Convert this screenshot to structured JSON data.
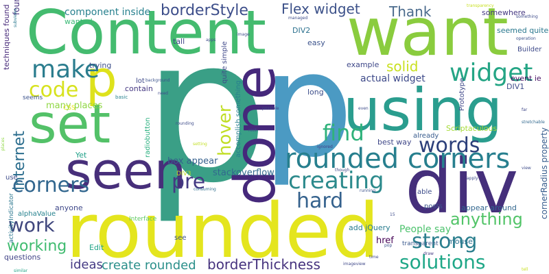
{
  "words": [
    {
      "text": "p",
      "color": "#3a9f86"
    },
    {
      "text": "p",
      "color": "#4b9ac3"
    },
    {
      "text": "Content",
      "color": "#44bb6f"
    },
    {
      "text": "want",
      "color": "#8acc3e"
    },
    {
      "text": "rounded",
      "color": "#e4e51e"
    },
    {
      "text": "using",
      "color": "#2a9d8e"
    },
    {
      "text": "div",
      "color": "#452f7b"
    },
    {
      "text": "set",
      "color": "#53c168"
    },
    {
      "text": "seen",
      "color": "#472f7a"
    },
    {
      "text": "done",
      "color": "#45287b"
    },
    {
      "text": "p",
      "color": "#dee21c"
    },
    {
      "text": "rounded corners",
      "color": "#277f8e"
    },
    {
      "text": "widget",
      "color": "#24a585"
    },
    {
      "text": "make",
      "color": "#2b7d8e"
    },
    {
      "text": "code",
      "color": "#d7e21e"
    },
    {
      "text": "find",
      "color": "#2fb27b"
    },
    {
      "text": "words",
      "color": "#2c3f7a"
    },
    {
      "text": "creating",
      "color": "#2c8a8c"
    },
    {
      "text": "hover",
      "color": "#c1de26"
    },
    {
      "text": "corners",
      "color": "#31668e"
    },
    {
      "text": "pre",
      "color": "#443a83"
    },
    {
      "text": "hard",
      "color": "#35628d"
    },
    {
      "text": "work",
      "color": "#3f467d"
    },
    {
      "text": "strong",
      "color": "#2b7f8e"
    },
    {
      "text": "solutions",
      "color": "#1ea787"
    },
    {
      "text": "internet",
      "color": "#2c6e8e"
    },
    {
      "text": "working",
      "color": "#3fbb6f"
    },
    {
      "text": "anything",
      "color": "#52c468"
    },
    {
      "text": "borderStyle",
      "color": "#3d4e8a"
    },
    {
      "text": "Flex widget",
      "color": "#3c5189"
    },
    {
      "text": "Thank",
      "color": "#4a6a8c"
    },
    {
      "text": "component inside",
      "color": "#27808e"
    },
    {
      "text": "solid",
      "color": "#c9e020"
    },
    {
      "text": "create rounded",
      "color": "#2a8f8a"
    },
    {
      "text": "borderThickness",
      "color": "#46337e"
    },
    {
      "text": "ideas",
      "color": "#443983"
    },
    {
      "text": "many places",
      "color": "#8fd744"
    },
    {
      "text": "actual widget",
      "color": "#3e4a89"
    },
    {
      "text": "box appear",
      "color": "#35608d"
    },
    {
      "text": "People say",
      "color": "#4cc26c"
    },
    {
      "text": "cornerRadius property",
      "color": "#365c8d"
    },
    {
      "text": "stackoverflow",
      "color": "#31688e"
    },
    {
      "text": "wanted",
      "color": "#3aba76"
    },
    {
      "text": "found",
      "color": "#46327e"
    },
    {
      "text": "techniques found",
      "color": "#472a7a"
    },
    {
      "text": "DIV2",
      "color": "#2c718e"
    },
    {
      "text": "easy",
      "color": "#3b528b"
    },
    {
      "text": "tall",
      "color": "#404588"
    },
    {
      "text": "trying",
      "color": "#3c4f8a"
    },
    {
      "text": "example",
      "color": "#3f4889"
    },
    {
      "text": "DIV1",
      "color": "#3e4c8a"
    },
    {
      "text": "event ie",
      "color": "#471063"
    },
    {
      "text": "somewhere",
      "color": "#453781"
    },
    {
      "text": "seemed quite",
      "color": "#2a788e"
    },
    {
      "text": "Builder",
      "color": "#3e4a89"
    },
    {
      "text": "contain",
      "color": "#453882"
    },
    {
      "text": "lot",
      "color": "#3f4889"
    },
    {
      "text": "long",
      "color": "#3d4e8a"
    },
    {
      "text": "Prototype",
      "color": "#3f4889"
    },
    {
      "text": "Scriptaculous",
      "color": "#a5db36"
    },
    {
      "text": "already",
      "color": "#375b8d"
    },
    {
      "text": "best way",
      "color": "#3f4788"
    },
    {
      "text": "appear around",
      "color": "#31668e"
    },
    {
      "text": "posts",
      "color": "#3a538b"
    },
    {
      "text": "able",
      "color": "#3d4d8a"
    },
    {
      "text": "href",
      "color": "#440154"
    },
    {
      "text": "mouse",
      "color": "#2d708e"
    },
    {
      "text": "add jQuery",
      "color": "#287c8e"
    },
    {
      "text": "alphaValue",
      "color": "#26828e"
    },
    {
      "text": "anyone",
      "color": "#3f4889"
    },
    {
      "text": "Yet",
      "color": "#1fa088"
    },
    {
      "text": "DIV3",
      "color": "#bddf26"
    },
    {
      "text": "use",
      "color": "#3e4c8a"
    },
    {
      "text": "Edit",
      "color": "#20a386"
    },
    {
      "text": "see",
      "color": "#3b528b"
    },
    {
      "text": "questions",
      "color": "#414487"
    },
    {
      "text": "transparent",
      "color": "#38588c"
    },
    {
      "text": "accomplish something",
      "color": "#277e8e"
    },
    {
      "text": "quite simple",
      "color": "#3f4889"
    },
    {
      "text": "radiobutton",
      "color": "#2ab07f"
    },
    {
      "text": "activityIndicator",
      "color": "#2a768e"
    },
    {
      "text": "Interface",
      "color": "#5ec962"
    },
    {
      "text": "CSS",
      "color": "#e5e419"
    },
    {
      "text": "seems",
      "color": "#3b528b"
    },
    {
      "text": "contain",
      "color": "#453882"
    },
    {
      "text": "basic",
      "color": "#26828e"
    },
    {
      "text": "need",
      "color": "#3e4c8a"
    },
    {
      "text": "background",
      "color": "#3b528b"
    },
    {
      "text": "rounding",
      "color": "#3e4c8a"
    },
    {
      "text": "possible",
      "color": "#3f4788"
    },
    {
      "text": "rect",
      "color": "#3b528b"
    },
    {
      "text": "setting",
      "color": "#c2df23"
    },
    {
      "text": "consuming",
      "color": "#2e6e8e"
    },
    {
      "text": "though",
      "color": "#3f4889"
    },
    {
      "text": "ignored",
      "color": "#433e85"
    },
    {
      "text": "running",
      "color": "#3b528b"
    },
    {
      "text": "time",
      "color": "#3f4788"
    },
    {
      "text": "draw",
      "color": "#443983"
    },
    {
      "text": "imageview",
      "color": "#3f4889"
    },
    {
      "text": "pop",
      "color": "#3b528b"
    },
    {
      "text": "similar",
      "color": "#20a386"
    },
    {
      "text": "view",
      "color": "#3e4c8a"
    },
    {
      "text": "apply",
      "color": "#3e4c8a"
    },
    {
      "text": "stretchable",
      "color": "#31688e"
    },
    {
      "text": "tell",
      "color": "#c8e020"
    },
    {
      "text": "far",
      "color": "#3f4788"
    },
    {
      "text": "operation",
      "color": "#3b528b"
    },
    {
      "text": "something",
      "color": "#3e4c8a"
    },
    {
      "text": "transparency",
      "color": "#c8e020"
    },
    {
      "text": "managed",
      "color": "#3e4c8a"
    },
    {
      "text": "image",
      "color": "#3e4c8a"
    },
    {
      "text": "apps",
      "color": "#3e4c8a"
    },
    {
      "text": "subviews",
      "color": "#2a788e"
    },
    {
      "text": "15",
      "color": "#3e4c8a"
    },
    {
      "text": "even",
      "color": "#3e4c8a"
    },
    {
      "text": "places",
      "color": "#8fd744"
    }
  ]
}
